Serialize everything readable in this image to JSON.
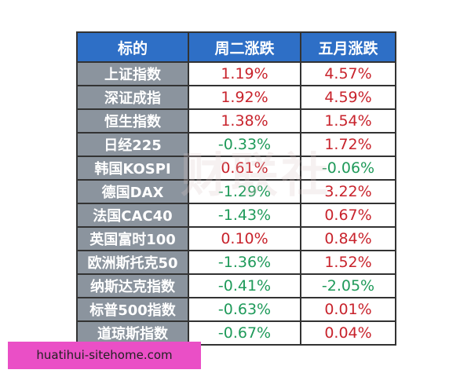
{
  "table": {
    "headers": [
      "标的",
      "周二涨跌",
      "五月涨跌"
    ],
    "rows": [
      {
        "name": "上证指数",
        "tue": "1.19%",
        "may": "4.57%"
      },
      {
        "name": "深证成指",
        "tue": "1.92%",
        "may": "4.59%"
      },
      {
        "name": "恒生指数",
        "tue": "1.38%",
        "may": "1.54%"
      },
      {
        "name": "日经225",
        "tue": "-0.33%",
        "may": "1.72%"
      },
      {
        "name": "韩国KOSPI",
        "tue": "0.61%",
        "may": "-0.06%"
      },
      {
        "name": "德国DAX",
        "tue": "-1.29%",
        "may": "3.22%"
      },
      {
        "name": "法国CAC40",
        "tue": "-1.43%",
        "may": "0.67%"
      },
      {
        "name": "英国富时100",
        "tue": "0.10%",
        "may": "0.84%"
      },
      {
        "name": "欧洲斯托克50",
        "tue": "-1.36%",
        "may": "1.52%"
      },
      {
        "name": "纳斯达克指数",
        "tue": "-0.41%",
        "may": "-2.05%"
      },
      {
        "name": "标普500指数",
        "tue": "-0.63%",
        "may": "0.01%"
      },
      {
        "name": "道琼斯指数",
        "tue": "-0.67%",
        "may": "0.04%"
      }
    ]
  },
  "colors": {
    "header_bg": "#2e6fc6",
    "name_bg": "#8b949e",
    "up": "#c8232c",
    "down": "#1f9a5a",
    "banner_bg": "#ea4fc6"
  },
  "watermark": "财联社",
  "banner": {
    "text": "huatihui-sitehome.com"
  }
}
